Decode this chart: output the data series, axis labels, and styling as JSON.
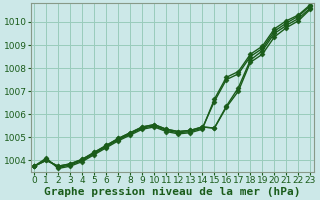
{
  "background_color": "#cce8e8",
  "plot_bg_color": "#cce8e8",
  "grid_color": "#99ccbb",
  "line_color": "#1a5c1a",
  "xlabel": "Graphe pression niveau de la mer (hPa)",
  "ylim": [
    1003.5,
    1010.8
  ],
  "xlim": [
    -0.3,
    23.3
  ],
  "yticks": [
    1004,
    1005,
    1006,
    1007,
    1008,
    1009,
    1010
  ],
  "xticks": [
    0,
    1,
    2,
    3,
    4,
    5,
    6,
    7,
    8,
    9,
    10,
    11,
    12,
    13,
    14,
    15,
    16,
    17,
    18,
    19,
    20,
    21,
    22,
    23
  ],
  "series": [
    [
      1003.75,
      1004.0,
      1003.75,
      1003.85,
      1004.05,
      1004.35,
      1004.65,
      1004.95,
      1005.2,
      1005.45,
      1005.55,
      1005.35,
      1005.25,
      1005.3,
      1005.45,
      1005.4,
      1006.3,
      1007.0,
      1008.25,
      1008.6,
      1009.35,
      1009.75,
      1010.05,
      1010.55
    ],
    [
      1003.75,
      1004.0,
      1003.75,
      1003.85,
      1004.05,
      1004.35,
      1004.65,
      1004.95,
      1005.2,
      1005.45,
      1005.55,
      1005.35,
      1005.25,
      1005.3,
      1005.45,
      1005.4,
      1006.35,
      1007.15,
      1008.35,
      1008.75,
      1009.5,
      1009.85,
      1010.15,
      1010.6
    ],
    [
      1003.75,
      1004.05,
      1003.7,
      1003.8,
      1004.0,
      1004.3,
      1004.6,
      1004.9,
      1005.15,
      1005.4,
      1005.5,
      1005.3,
      1005.2,
      1005.25,
      1005.4,
      1006.55,
      1007.5,
      1007.75,
      1008.5,
      1008.85,
      1009.6,
      1009.95,
      1010.25,
      1010.7
    ],
    [
      1003.75,
      1004.1,
      1003.65,
      1003.75,
      1003.95,
      1004.25,
      1004.55,
      1004.85,
      1005.1,
      1005.35,
      1005.45,
      1005.25,
      1005.15,
      1005.2,
      1005.35,
      1006.65,
      1007.6,
      1007.85,
      1008.6,
      1008.95,
      1009.7,
      1010.05,
      1010.3,
      1010.75
    ]
  ],
  "xlabel_fontsize": 8,
  "tick_fontsize": 6.5,
  "marker": "D",
  "markersize": 2.5,
  "linewidth": 1.0
}
